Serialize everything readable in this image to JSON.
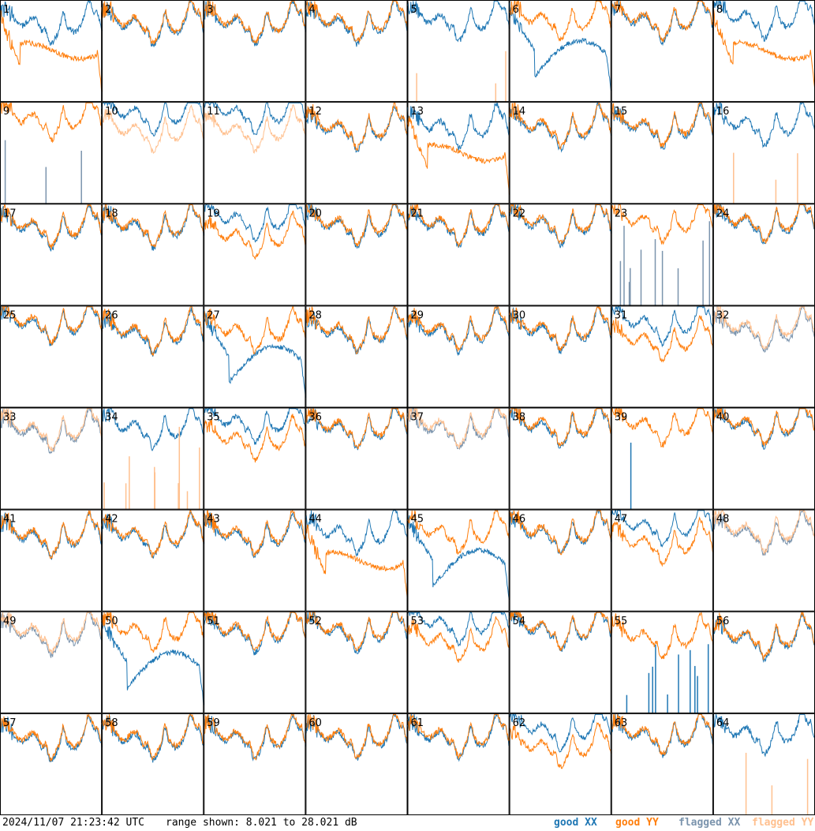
{
  "chart_data": {
    "type": "line",
    "grid": {
      "rows": 8,
      "cols": 8
    },
    "panel_labels": [
      "1",
      "2",
      "3",
      "4",
      "5",
      "6",
      "7",
      "8",
      "9",
      "10",
      "11",
      "12",
      "13",
      "14",
      "15",
      "16",
      "17",
      "18",
      "19",
      "20",
      "21",
      "22",
      "23",
      "24",
      "25",
      "26",
      "27",
      "28",
      "29",
      "30",
      "31",
      "32",
      "33",
      "34",
      "35",
      "36",
      "37",
      "38",
      "39",
      "40",
      "41",
      "42",
      "43",
      "44",
      "45",
      "46",
      "47",
      "48",
      "49",
      "50",
      "51",
      "52",
      "53",
      "54",
      "55",
      "56",
      "57",
      "58",
      "59",
      "60",
      "61",
      "62",
      "63",
      "64"
    ],
    "ylim": [
      8.021,
      28.021
    ],
    "ylabel": "dB",
    "series_styles": [
      {
        "name": "good XX",
        "color": "#1f77b4"
      },
      {
        "name": "good YY",
        "color": "#ff7f0e"
      },
      {
        "name": "flagged XX",
        "color": "#7b94ad"
      },
      {
        "name": "flagged YY",
        "color": "#ffc08f"
      }
    ],
    "panel_types": {
      "normal": [
        2,
        3,
        4,
        7,
        12,
        14,
        15,
        17,
        18,
        20,
        21,
        22,
        24,
        25,
        26,
        28,
        29,
        30,
        36,
        38,
        40,
        41,
        42,
        43,
        46,
        51,
        52,
        54,
        56,
        57,
        58,
        59,
        60,
        61,
        63
      ],
      "xx_high": [
        10,
        11,
        16,
        19,
        31,
        35,
        47,
        53,
        62,
        64
      ],
      "dip_xx": [
        6,
        27,
        45,
        50
      ],
      "dip_yy": [
        1,
        8,
        13,
        44
      ],
      "flagged_yy": [
        32,
        33,
        37,
        48,
        49
      ],
      "spike_bottom_yy": [
        5,
        34,
        9,
        16,
        64
      ],
      "spike_bottom_xx": [
        23,
        39,
        55
      ]
    }
  },
  "footer": {
    "timestamp": "2024/11/07 21:23:42 UTC",
    "range_text": "range shown: 8.021 to 28.021 dB",
    "legend": {
      "good_xx": "good XX",
      "good_yy": "good YY",
      "flagged_xx": "flagged XX",
      "flagged_yy": "flagged YY"
    },
    "colors": {
      "good_xx": "#1f77b4",
      "good_yy": "#ff7f0e",
      "flagged_xx": "#7b94ad",
      "flagged_yy": "#ffc08f"
    }
  }
}
